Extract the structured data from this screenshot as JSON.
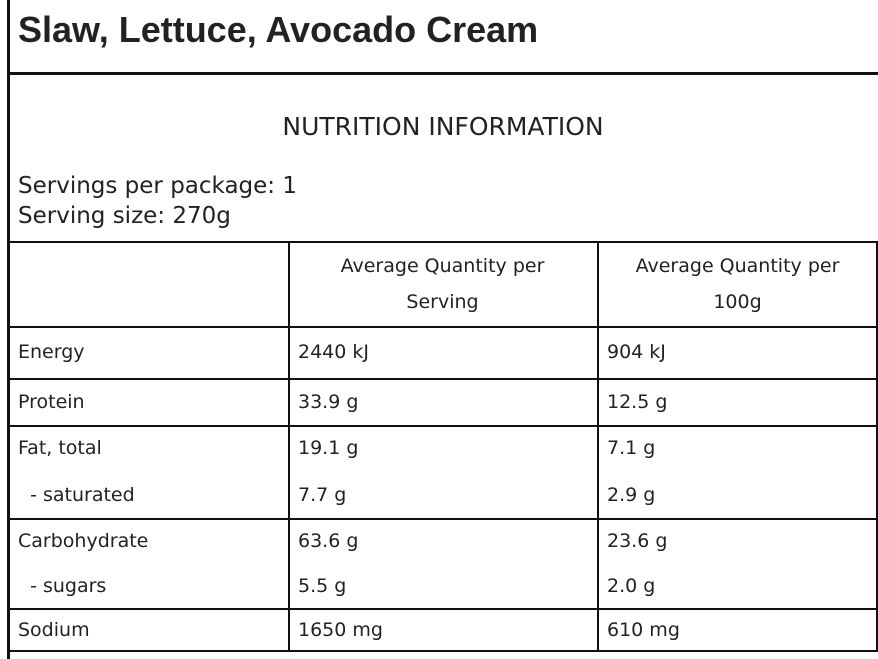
{
  "header": {
    "title": "Slaw, Lettuce, Avocado Cream",
    "subtitle": "NUTRITION INFORMATION",
    "servings_per_package": "Servings per package: 1",
    "serving_size": "Serving size: 270g"
  },
  "table": {
    "columns": [
      "",
      "Average Quantity per Serving",
      "Average Quantity per 100g"
    ],
    "groups": [
      [
        [
          "Energy",
          "2440 kJ",
          "904 kJ"
        ]
      ],
      [
        [
          "Protein",
          "33.9 g",
          "12.5 g"
        ]
      ],
      [
        [
          "Fat, total",
          "19.1 g",
          "7.1 g"
        ],
        [
          "  - saturated",
          "7.7 g",
          "2.9 g"
        ]
      ],
      [
        [
          "Carbohydrate",
          "63.6 g",
          "23.6 g"
        ],
        [
          "  - sugars",
          "5.5 g",
          "2.0 g"
        ]
      ],
      [
        [
          "Sodium",
          "1650 mg",
          "610 mg"
        ]
      ]
    ]
  }
}
